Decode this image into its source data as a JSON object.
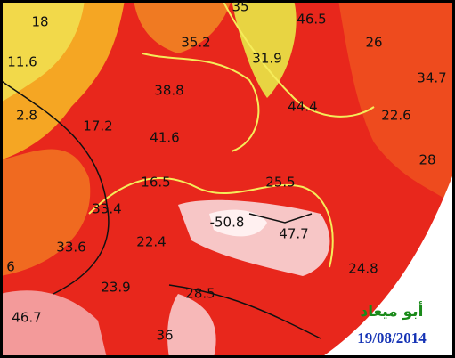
{
  "map": {
    "labels": [
      "18",
      "11.6",
      "35",
      "46.5",
      "35.2",
      "31.9",
      "26",
      "34.7",
      "38.8",
      "44.4",
      "22.6",
      "2.8",
      "17.2",
      "41.6",
      "28",
      "16.5",
      "25.5",
      "33.4",
      "-50.8",
      "47.7",
      "33.6",
      "22.4",
      "6",
      "24.8",
      "23.9",
      "28.5",
      "46.7",
      "36"
    ],
    "signature": "أبو ميعاد",
    "date": "19/08/2014"
  }
}
